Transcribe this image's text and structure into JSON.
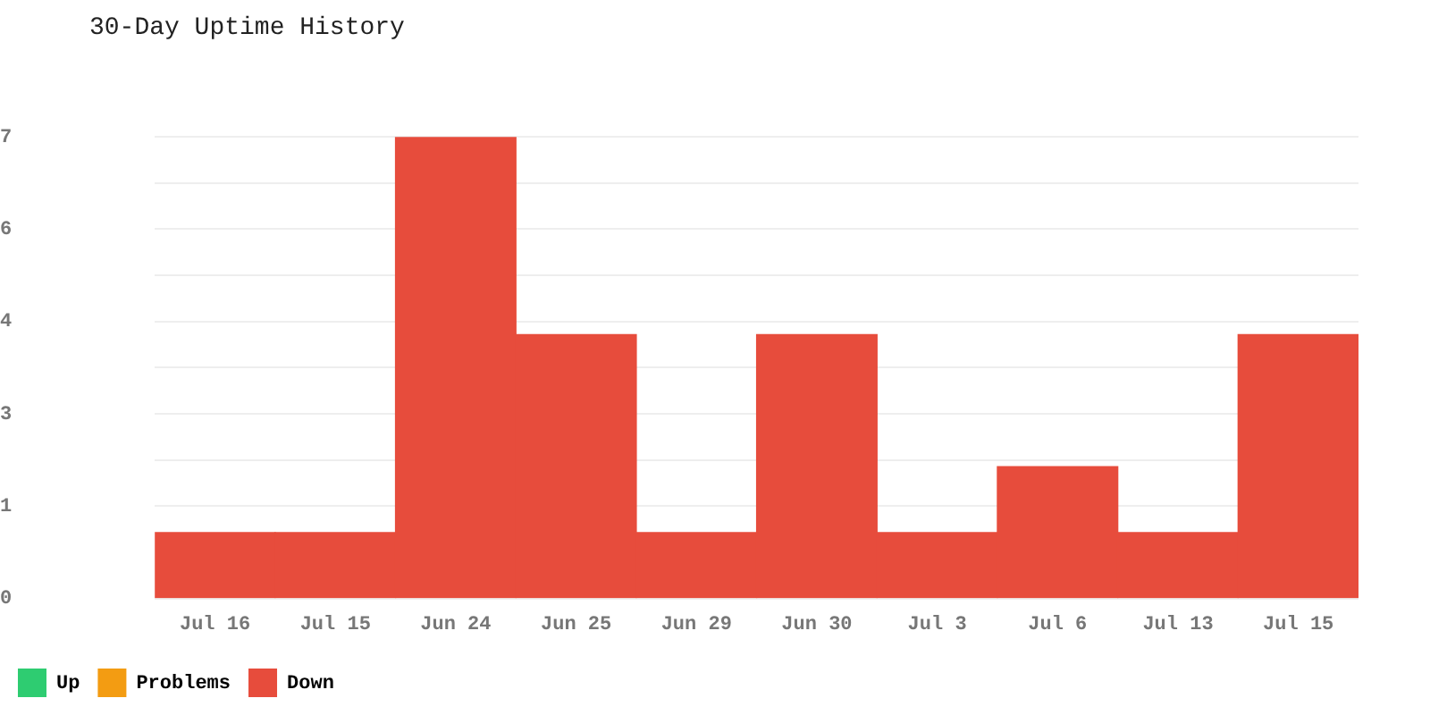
{
  "chart_data": {
    "type": "bar",
    "title": "30-Day Uptime History",
    "categories": [
      "Jul 16",
      "Jul 15",
      "Jun 24",
      "Jun 25",
      "Jun 29",
      "Jun 30",
      "Jul 3",
      "Jul 6",
      "Jul 13",
      "Jul 15"
    ],
    "series": [
      {
        "name": "Up",
        "color": "#2ecc71",
        "values": [
          null,
          null,
          null,
          null,
          null,
          null,
          null,
          null,
          null,
          null
        ]
      },
      {
        "name": "Problems",
        "color": "#f39c12",
        "values": [
          null,
          null,
          null,
          null,
          null,
          null,
          null,
          null,
          null,
          null
        ]
      },
      {
        "name": "Down",
        "color": "#e74c3c",
        "values": [
          1,
          1,
          7,
          4,
          1,
          4,
          1,
          2,
          1,
          4
        ]
      }
    ],
    "stacked": true,
    "ylim": [
      0,
      7
    ],
    "yticks": [
      0,
      {
        "value": 1.4,
        "label": "1"
      },
      {
        "value": 2.1,
        "label": null
      },
      {
        "value": 2.8,
        "label": "3"
      },
      {
        "value": 3.5,
        "label": null
      },
      {
        "value": 4.2,
        "label": "4"
      },
      {
        "value": 4.9,
        "label": null
      },
      {
        "value": 5.6,
        "label": "6"
      },
      {
        "value": 6.3,
        "label": null
      },
      {
        "value": 7,
        "label": "7"
      }
    ],
    "grid": "y",
    "legend": "bottom left"
  }
}
